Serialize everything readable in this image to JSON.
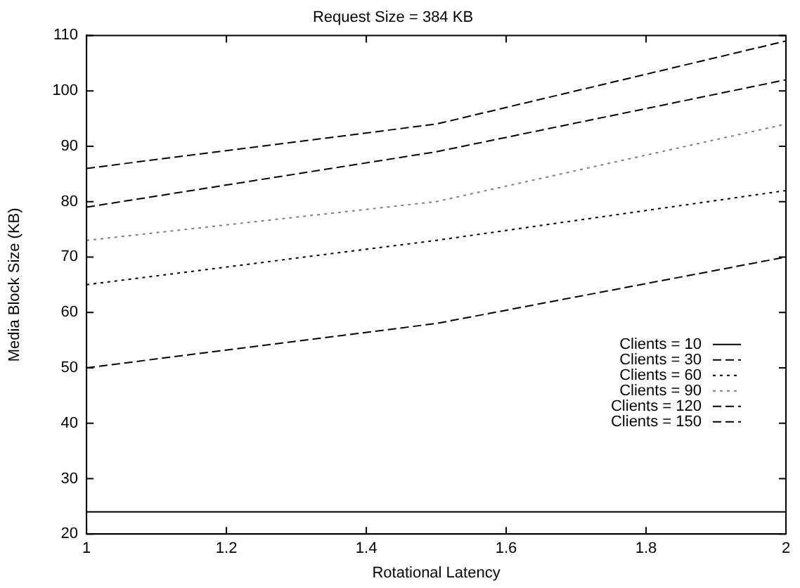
{
  "chart_data": {
    "type": "line",
    "title": "Request Size = 384 KB",
    "xlabel": "Rotational Latency",
    "ylabel": "Media Block Size (KB)",
    "x": [
      1,
      1.5,
      2
    ],
    "series": [
      {
        "name": "Clients = 10",
        "color": "#000000",
        "line_style": "solid",
        "values": [
          24,
          24,
          24
        ]
      },
      {
        "name": "Clients = 30",
        "color": "#000000",
        "line_style": "dashed",
        "values": [
          50,
          58,
          70
        ]
      },
      {
        "name": "Clients = 60",
        "color": "#000000",
        "line_style": "dotted",
        "values": [
          65,
          73,
          82
        ]
      },
      {
        "name": "Clients = 90",
        "color": "#808080",
        "line_style": "dotted",
        "values": [
          73,
          80,
          94
        ]
      },
      {
        "name": "Clients = 120",
        "color": "#000000",
        "line_style": "dashed",
        "values": [
          79,
          89,
          102
        ]
      },
      {
        "name": "Clients = 150",
        "color": "#000000",
        "line_style": "dashed",
        "values": [
          86,
          94,
          109
        ]
      }
    ],
    "xlim": [
      1,
      2
    ],
    "xticks": [
      1,
      1.2,
      1.4,
      1.6,
      1.8,
      2
    ],
    "ylim": [
      20,
      110
    ],
    "yticks": [
      20,
      30,
      40,
      50,
      60,
      70,
      80,
      90,
      100,
      110
    ],
    "grid": false,
    "legend": "right",
    "marker": "none"
  }
}
